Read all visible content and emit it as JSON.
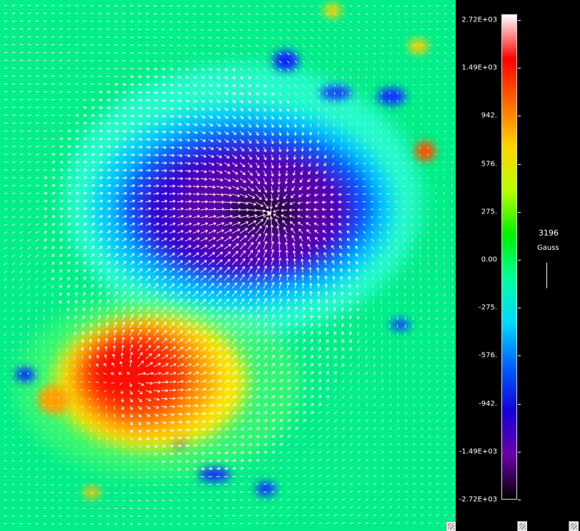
{
  "colorbar": {
    "ticks": [
      "2.72E+03",
      "1.49E+03",
      "942.",
      "576.",
      "275.",
      "0.00",
      "-275.",
      "-576.",
      "-942.",
      "-1.49E+03",
      "-2.72E+03"
    ],
    "colors": [
      "#ffffff",
      "#ff0000",
      "#ff6a00",
      "#ffd400",
      "#b6ff00",
      "#00f000",
      "#00ffa0",
      "#00d8ff",
      "#0060ff",
      "#1400d8",
      "#6a00a8",
      "#000000"
    ]
  },
  "scale": {
    "value": "3196",
    "unit": "Gauss"
  },
  "field_map": {
    "background": "#00ee88",
    "negative_core": "#3a0060",
    "positive_core": "#ff1800",
    "arrow_color": "#ffffff",
    "icons": [
      "vector-arrow-icon",
      "resize-handle-icon"
    ]
  }
}
